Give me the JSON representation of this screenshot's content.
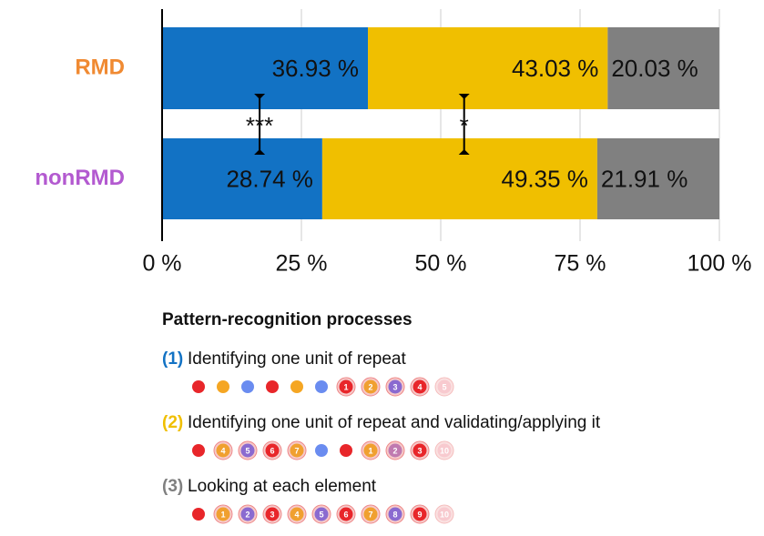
{
  "chart_data": {
    "type": "stacked-bar-horizontal",
    "categories": [
      "RMD",
      "nonRMD"
    ],
    "category_colors": [
      "#f08a32",
      "#b35ad0"
    ],
    "series": [
      {
        "name": "Identifying one unit of repeat",
        "marker_label": "(1)",
        "color": "#1272c4",
        "values": [
          36.93,
          28.74
        ],
        "value_labels": [
          "36.93 %",
          "28.74 %"
        ],
        "label_align": "end",
        "example": [
          {
            "color": "#e8262a"
          },
          {
            "color": "#f5a623"
          },
          {
            "color": "#6a8cf0"
          },
          {
            "color": "#e8262a"
          },
          {
            "color": "#f5a623"
          },
          {
            "color": "#6a8cf0"
          },
          {
            "label": "1",
            "color": "#e8262a"
          },
          {
            "label": "2",
            "color": "#f0a030"
          },
          {
            "label": "3",
            "color": "#8a6ad0"
          },
          {
            "label": "4",
            "color": "#e8262a"
          },
          {
            "label": "5",
            "color": "#f4a0a8",
            "faded": true
          }
        ]
      },
      {
        "name": "Identifying one unit of repeat and validating/applying it",
        "marker_label": "(2)",
        "color": "#f0bf00",
        "values": [
          43.03,
          49.35
        ],
        "value_labels": [
          "43.03 %",
          "49.35 %"
        ],
        "label_align": "end",
        "example": [
          {
            "color": "#e8262a"
          },
          {
            "label": "4",
            "color": "#f0a030"
          },
          {
            "label": "5",
            "color": "#8a6ad0"
          },
          {
            "label": "6",
            "color": "#e8262a"
          },
          {
            "label": "7",
            "color": "#f0a030"
          },
          {
            "color": "#6a8cf0"
          },
          {
            "color": "#e8262a"
          },
          {
            "label": "1",
            "color": "#f0a030"
          },
          {
            "label": "2",
            "color": "#c07ab0"
          },
          {
            "label": "3",
            "color": "#e8262a"
          },
          {
            "label": "10",
            "color": "#f4a0a8",
            "faded": true
          }
        ]
      },
      {
        "name": "Looking at each element",
        "marker_label": "(3)",
        "color": "#808080",
        "values": [
          20.03,
          21.91
        ],
        "value_labels": [
          "20.03 %",
          "21.91 %"
        ],
        "label_align": "start",
        "example": [
          {
            "color": "#e8262a"
          },
          {
            "label": "1",
            "color": "#f0a030"
          },
          {
            "label": "2",
            "color": "#8a6ad0"
          },
          {
            "label": "3",
            "color": "#e8262a"
          },
          {
            "label": "4",
            "color": "#f0a030"
          },
          {
            "label": "5",
            "color": "#8a6ad0"
          },
          {
            "label": "6",
            "color": "#e8262a"
          },
          {
            "label": "7",
            "color": "#f0a030"
          },
          {
            "label": "8",
            "color": "#8a6ad0"
          },
          {
            "label": "9",
            "color": "#e8262a"
          },
          {
            "label": "10",
            "color": "#f4a0a8",
            "faded": true
          }
        ]
      }
    ],
    "xlim": [
      0,
      100
    ],
    "xticks": [
      {
        "value": 0,
        "label": "0 %"
      },
      {
        "value": 25,
        "label": "25 %"
      },
      {
        "value": 50,
        "label": "50 %"
      },
      {
        "value": 75,
        "label": "75 %"
      },
      {
        "value": 100,
        "label": "100 %"
      }
    ],
    "grid": true,
    "significance": [
      {
        "label": "***",
        "x": 17.5
      },
      {
        "label": "*",
        "x": 54.2
      }
    ],
    "legend_title": "Pattern-recognition processes"
  }
}
